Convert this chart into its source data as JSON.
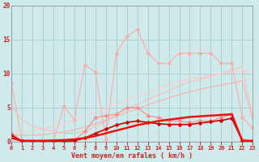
{
  "x": [
    0,
    1,
    2,
    3,
    4,
    5,
    6,
    7,
    8,
    9,
    10,
    11,
    12,
    13,
    14,
    15,
    16,
    17,
    18,
    19,
    20,
    21,
    22,
    23
  ],
  "series": [
    {
      "name": "top_jagged_light",
      "color": "#ffaaaa",
      "linewidth": 0.8,
      "marker": "D",
      "markersize": 2.5,
      "y": [
        8.5,
        0.2,
        0.1,
        0.05,
        0.05,
        5.2,
        3.2,
        11.3,
        10.2,
        0.3,
        13.0,
        15.5,
        16.5,
        13.0,
        11.5,
        11.5,
        13.0,
        13.0,
        13.0,
        13.0,
        11.5,
        11.5,
        3.5,
        2.0
      ]
    },
    {
      "name": "upper_slope_light",
      "color": "#ffbbbb",
      "linewidth": 0.8,
      "marker": null,
      "y": [
        5.1,
        3.2,
        2.2,
        1.8,
        1.5,
        1.2,
        1.2,
        1.5,
        2.2,
        3.0,
        4.0,
        4.8,
        5.5,
        6.2,
        6.8,
        7.5,
        8.2,
        8.8,
        9.2,
        9.6,
        10.0,
        10.5,
        11.0,
        3.5
      ]
    },
    {
      "name": "mid_slope_light",
      "color": "#ffcccc",
      "linewidth": 0.8,
      "marker": null,
      "y": [
        1.2,
        1.4,
        1.6,
        1.9,
        2.2,
        2.6,
        3.1,
        3.7,
        4.3,
        4.9,
        5.5,
        6.1,
        6.7,
        7.2,
        7.8,
        8.3,
        8.8,
        9.2,
        9.5,
        9.8,
        10.0,
        10.2,
        10.5,
        10.2
      ]
    },
    {
      "name": "lower_slope_pink",
      "color": "#ffaaaa",
      "linewidth": 0.8,
      "marker": null,
      "y": [
        1.0,
        0.9,
        0.9,
        1.0,
        1.2,
        1.4,
        1.7,
        2.1,
        2.6,
        3.1,
        3.7,
        4.3,
        4.8,
        5.4,
        5.9,
        6.4,
        6.9,
        7.3,
        7.7,
        8.0,
        8.3,
        8.6,
        8.9,
        3.2
      ]
    },
    {
      "name": "mid_marker_pink",
      "color": "#ff8888",
      "linewidth": 0.8,
      "marker": "D",
      "markersize": 2.5,
      "y": [
        1.2,
        0.1,
        0.05,
        0.0,
        0.0,
        0.0,
        0.15,
        1.5,
        3.5,
        3.8,
        4.0,
        5.0,
        5.0,
        3.8,
        3.5,
        3.0,
        3.0,
        2.8,
        3.0,
        3.0,
        3.5,
        4.0,
        0.3,
        0.2
      ]
    },
    {
      "name": "bold_marker_red",
      "color": "#cc0000",
      "linewidth": 1.2,
      "marker": "D",
      "markersize": 2.5,
      "y": [
        0.9,
        0.05,
        0.0,
        0.0,
        0.0,
        0.0,
        0.1,
        0.5,
        1.2,
        1.8,
        2.4,
        2.8,
        3.0,
        2.8,
        2.6,
        2.5,
        2.5,
        2.5,
        2.7,
        2.9,
        3.1,
        3.4,
        0.1,
        0.05
      ]
    },
    {
      "name": "thick_red_slope",
      "color": "#ee1111",
      "linewidth": 1.8,
      "marker": null,
      "y": [
        0.5,
        0.1,
        0.1,
        0.1,
        0.15,
        0.2,
        0.3,
        0.5,
        0.8,
        1.2,
        1.6,
        2.0,
        2.4,
        2.7,
        3.0,
        3.2,
        3.4,
        3.6,
        3.7,
        3.8,
        3.9,
        4.0,
        0.1,
        0.05
      ]
    },
    {
      "name": "flat_red",
      "color": "#ff2222",
      "linewidth": 0.8,
      "marker": null,
      "y": [
        0.0,
        0.0,
        0.0,
        0.0,
        0.0,
        0.0,
        0.0,
        0.0,
        0.0,
        0.0,
        0.0,
        0.0,
        0.0,
        0.0,
        0.0,
        0.0,
        0.0,
        0.0,
        0.0,
        0.0,
        0.0,
        0.0,
        0.0,
        0.0
      ]
    }
  ],
  "xlabel": "Vent moyen/en rafales ( km/h )",
  "xlim": [
    0,
    23
  ],
  "ylim": [
    0,
    20
  ],
  "yticks": [
    0,
    5,
    10,
    15,
    20
  ],
  "xticks": [
    0,
    1,
    2,
    3,
    4,
    5,
    6,
    7,
    8,
    9,
    10,
    11,
    12,
    13,
    14,
    15,
    16,
    17,
    18,
    19,
    20,
    21,
    22,
    23
  ],
  "background_color": "#ceeaea",
  "grid_color": "#aacccc",
  "tick_color": "#cc2222",
  "label_color": "#cc2222"
}
